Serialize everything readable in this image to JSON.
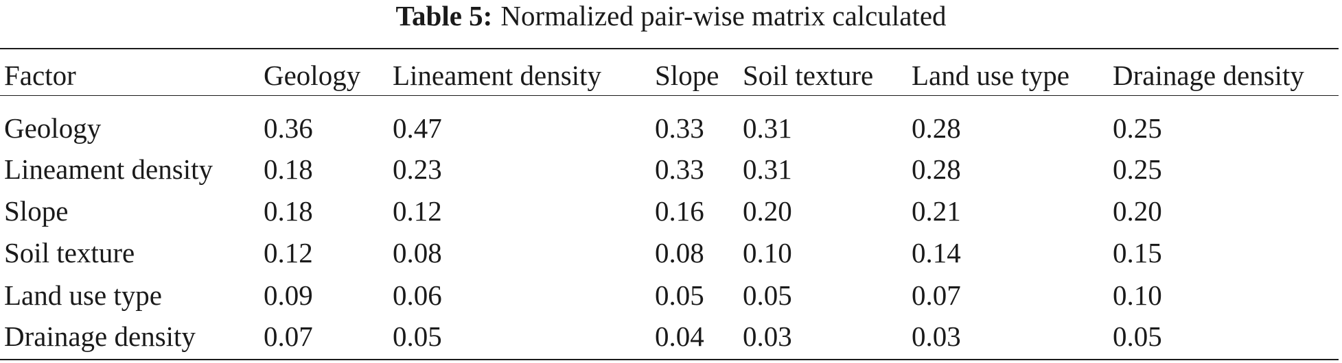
{
  "title": {
    "label": "Table 5:",
    "text": "Normalized pair-wise matrix calculated"
  },
  "table": {
    "header": [
      "Factor",
      "Geology",
      "Lineament density",
      "Slope",
      "Soil texture",
      "Land use type",
      "Drainage density"
    ],
    "rows": [
      [
        "Geology",
        "0.36",
        "0.47",
        "0.33",
        "0.31",
        "0.28",
        "0.25"
      ],
      [
        "Lineament density",
        "0.18",
        "0.23",
        "0.33",
        "0.31",
        "0.28",
        "0.25"
      ],
      [
        "Slope",
        "0.18",
        "0.12",
        "0.16",
        "0.20",
        "0.21",
        "0.20"
      ],
      [
        "Soil texture",
        "0.12",
        "0.08",
        "0.08",
        "0.10",
        "0.14",
        "0.15"
      ],
      [
        "Land use type",
        "0.09",
        "0.06",
        "0.05",
        "0.05",
        "0.07",
        "0.10"
      ],
      [
        "Drainage density",
        "0.07",
        "0.05",
        "0.04",
        "0.03",
        "0.03",
        "0.05"
      ]
    ]
  }
}
